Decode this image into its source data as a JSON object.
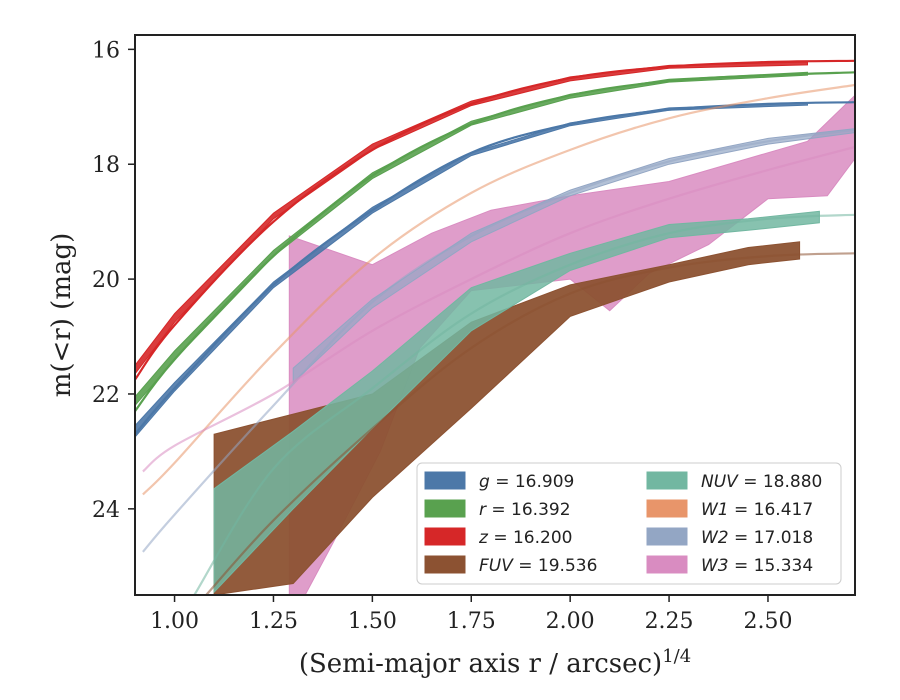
{
  "chart_data": {
    "type": "line",
    "xlabel": "(Semi-major axis r / arcsec)",
    "xlabel_superscript": "1/4",
    "ylabel": "m(<r) (mag)",
    "xlim": [
      0.9,
      2.72
    ],
    "ylim": [
      25.5,
      15.75
    ],
    "y_inverted": true,
    "grid": false,
    "legend_location": "lower-right",
    "x_ticks": [
      1.0,
      1.25,
      1.5,
      1.75,
      2.0,
      2.25,
      2.5
    ],
    "x_tick_labels": [
      "1.00",
      "1.25",
      "1.50",
      "1.75",
      "2.00",
      "2.25",
      "2.50"
    ],
    "y_ticks": [
      16,
      18,
      20,
      22,
      24
    ],
    "y_tick_labels": [
      "16",
      "18",
      "20",
      "22",
      "24"
    ],
    "series": [
      {
        "key": "g",
        "name": "g = 16.909",
        "legend_var": "g",
        "legend_val": "16.909",
        "color": "#4c78a8",
        "model": [
          [
            0.9,
            22.7
          ],
          [
            1.0,
            21.9
          ],
          [
            1.25,
            20.1
          ],
          [
            1.5,
            18.8
          ],
          [
            1.75,
            17.8
          ],
          [
            2.0,
            17.3
          ],
          [
            2.25,
            17.05
          ],
          [
            2.5,
            16.95
          ],
          [
            2.72,
            16.92
          ]
        ],
        "data_upper": [
          [
            0.9,
            22.55
          ],
          [
            1.0,
            21.8
          ],
          [
            1.25,
            20.05
          ],
          [
            1.5,
            18.75
          ],
          [
            1.75,
            17.8
          ],
          [
            2.0,
            17.28
          ],
          [
            2.25,
            17.02
          ],
          [
            2.6,
            16.93
          ]
        ],
        "data_lower": [
          [
            0.9,
            22.75
          ],
          [
            1.0,
            21.95
          ],
          [
            1.25,
            20.15
          ],
          [
            1.5,
            18.85
          ],
          [
            1.75,
            17.85
          ],
          [
            2.0,
            17.33
          ],
          [
            2.25,
            17.06
          ],
          [
            2.6,
            16.97
          ]
        ]
      },
      {
        "key": "r",
        "name": "r = 16.392",
        "legend_var": "r",
        "legend_val": "16.392",
        "color": "#59a14f",
        "model": [
          [
            0.9,
            22.3
          ],
          [
            1.0,
            21.4
          ],
          [
            1.25,
            19.6
          ],
          [
            1.5,
            18.2
          ],
          [
            1.75,
            17.3
          ],
          [
            2.0,
            16.8
          ],
          [
            2.25,
            16.55
          ],
          [
            2.5,
            16.45
          ],
          [
            2.72,
            16.4
          ]
        ],
        "data_upper": [
          [
            0.9,
            22.05
          ],
          [
            1.0,
            21.25
          ],
          [
            1.25,
            19.5
          ],
          [
            1.5,
            18.15
          ],
          [
            1.75,
            17.25
          ],
          [
            2.0,
            16.78
          ],
          [
            2.25,
            16.52
          ],
          [
            2.6,
            16.4
          ]
        ],
        "data_lower": [
          [
            0.9,
            22.2
          ],
          [
            1.0,
            21.4
          ],
          [
            1.25,
            19.6
          ],
          [
            1.5,
            18.25
          ],
          [
            1.75,
            17.32
          ],
          [
            2.0,
            16.85
          ],
          [
            2.25,
            16.57
          ],
          [
            2.6,
            16.45
          ]
        ]
      },
      {
        "key": "z",
        "name": "z = 16.200",
        "legend_var": "z",
        "legend_val": "16.200",
        "color": "#d62728",
        "model": [
          [
            0.9,
            21.75
          ],
          [
            1.0,
            20.8
          ],
          [
            1.25,
            19.0
          ],
          [
            1.5,
            17.75
          ],
          [
            1.75,
            16.95
          ],
          [
            2.0,
            16.5
          ],
          [
            2.25,
            16.3
          ],
          [
            2.5,
            16.22
          ],
          [
            2.72,
            16.2
          ]
        ],
        "data_upper": [
          [
            0.9,
            21.5
          ],
          [
            1.0,
            20.6
          ],
          [
            1.25,
            18.85
          ],
          [
            1.5,
            17.65
          ],
          [
            1.75,
            16.9
          ],
          [
            2.0,
            16.48
          ],
          [
            2.25,
            16.28
          ],
          [
            2.6,
            16.22
          ]
        ],
        "data_lower": [
          [
            0.9,
            21.65
          ],
          [
            1.0,
            20.75
          ],
          [
            1.25,
            18.95
          ],
          [
            1.5,
            17.75
          ],
          [
            1.75,
            16.98
          ],
          [
            2.0,
            16.55
          ],
          [
            2.25,
            16.33
          ],
          [
            2.6,
            16.27
          ]
        ]
      },
      {
        "key": "FUV",
        "name": "FUV = 19.536",
        "legend_var": "FUV",
        "legend_val": "19.536",
        "color": "#8c5232",
        "model": [
          [
            1.08,
            25.5
          ],
          [
            1.25,
            24.2
          ],
          [
            1.5,
            22.6
          ],
          [
            1.75,
            21.2
          ],
          [
            2.0,
            20.25
          ],
          [
            2.25,
            19.8
          ],
          [
            2.5,
            19.6
          ],
          [
            2.72,
            19.55
          ]
        ],
        "data_upper": [
          [
            1.1,
            22.7
          ],
          [
            1.3,
            22.35
          ],
          [
            1.5,
            22.0
          ],
          [
            1.75,
            20.75
          ],
          [
            2.0,
            20.1
          ],
          [
            2.25,
            19.75
          ],
          [
            2.45,
            19.45
          ],
          [
            2.58,
            19.35
          ]
        ],
        "data_lower": [
          [
            1.1,
            25.5
          ],
          [
            1.3,
            25.3
          ],
          [
            1.5,
            23.8
          ],
          [
            1.75,
            22.25
          ],
          [
            2.0,
            20.65
          ],
          [
            2.25,
            20.05
          ],
          [
            2.45,
            19.75
          ],
          [
            2.58,
            19.65
          ]
        ]
      },
      {
        "key": "NUV",
        "name": "NUV = 18.880",
        "legend_var": "NUV",
        "legend_val": "18.880",
        "color": "#72b7a1",
        "model": [
          [
            1.05,
            25.5
          ],
          [
            1.25,
            23.3
          ],
          [
            1.5,
            21.9
          ],
          [
            1.75,
            20.6
          ],
          [
            2.0,
            19.75
          ],
          [
            2.25,
            19.2
          ],
          [
            2.5,
            18.95
          ],
          [
            2.72,
            18.88
          ]
        ],
        "data_upper": [
          [
            1.1,
            23.65
          ],
          [
            1.3,
            22.65
          ],
          [
            1.5,
            21.6
          ],
          [
            1.75,
            20.15
          ],
          [
            2.0,
            19.55
          ],
          [
            2.25,
            19.05
          ],
          [
            2.45,
            18.95
          ],
          [
            2.63,
            18.82
          ]
        ],
        "data_lower": [
          [
            1.1,
            25.45
          ],
          [
            1.3,
            24.0
          ],
          [
            1.5,
            22.6
          ],
          [
            1.75,
            20.9
          ],
          [
            2.0,
            19.85
          ],
          [
            2.25,
            19.28
          ],
          [
            2.45,
            19.15
          ],
          [
            2.63,
            19.02
          ]
        ]
      },
      {
        "key": "W1",
        "name": "W1 = 16.417",
        "legend_var": "W1",
        "legend_val": "16.417",
        "color": "#e8956a",
        "model": [
          [
            0.92,
            23.75
          ],
          [
            1.0,
            23.2
          ],
          [
            1.25,
            21.3
          ],
          [
            1.5,
            19.65
          ],
          [
            1.75,
            18.5
          ],
          [
            2.0,
            17.75
          ],
          [
            2.25,
            17.2
          ],
          [
            2.5,
            16.85
          ],
          [
            2.72,
            16.62
          ]
        ]
      },
      {
        "key": "W2",
        "name": "W2 = 17.018",
        "legend_var": "W2",
        "legend_val": "17.018",
        "color": "#93a6c4",
        "model": [
          [
            0.92,
            24.75
          ],
          [
            1.0,
            24.1
          ],
          [
            1.25,
            22.2
          ],
          [
            1.5,
            20.4
          ],
          [
            1.75,
            19.25
          ],
          [
            2.0,
            18.5
          ],
          [
            2.25,
            17.95
          ],
          [
            2.5,
            17.6
          ],
          [
            2.72,
            17.4
          ]
        ],
        "data_upper": [
          [
            1.3,
            21.55
          ],
          [
            1.5,
            20.35
          ],
          [
            1.75,
            19.2
          ],
          [
            2.0,
            18.45
          ],
          [
            2.25,
            17.9
          ],
          [
            2.5,
            17.55
          ],
          [
            2.72,
            17.38
          ]
        ],
        "data_lower": [
          [
            1.3,
            21.8
          ],
          [
            1.5,
            20.5
          ],
          [
            1.75,
            19.35
          ],
          [
            2.0,
            18.55
          ],
          [
            2.25,
            18.0
          ],
          [
            2.5,
            17.65
          ],
          [
            2.72,
            17.45
          ]
        ]
      },
      {
        "key": "W3",
        "name": "W3 = 15.334",
        "legend_var": "W3",
        "legend_val": "15.334",
        "color": "#d98cc1",
        "model": [
          [
            0.92,
            23.35
          ],
          [
            1.0,
            22.9
          ],
          [
            1.25,
            22.0
          ],
          [
            1.5,
            20.9
          ],
          [
            1.75,
            20.0
          ],
          [
            2.0,
            19.2
          ],
          [
            2.25,
            18.6
          ],
          [
            2.5,
            18.1
          ],
          [
            2.72,
            17.7
          ]
        ],
        "data_upper": [
          [
            1.29,
            19.25
          ],
          [
            1.5,
            19.75
          ],
          [
            1.65,
            19.2
          ],
          [
            1.8,
            18.8
          ],
          [
            2.0,
            18.55
          ],
          [
            2.25,
            18.3
          ],
          [
            2.45,
            17.9
          ],
          [
            2.6,
            17.6
          ],
          [
            2.72,
            16.8
          ]
        ],
        "data_lower": [
          [
            1.29,
            25.5
          ],
          [
            1.33,
            25.5
          ],
          [
            1.4,
            24.6
          ],
          [
            1.52,
            23.0
          ],
          [
            1.62,
            21.2
          ],
          [
            1.75,
            20.2
          ],
          [
            2.0,
            20.0
          ],
          [
            2.1,
            20.55
          ],
          [
            2.2,
            19.9
          ],
          [
            2.35,
            19.4
          ],
          [
            2.5,
            18.6
          ],
          [
            2.65,
            18.55
          ],
          [
            2.72,
            17.9
          ]
        ]
      }
    ]
  }
}
